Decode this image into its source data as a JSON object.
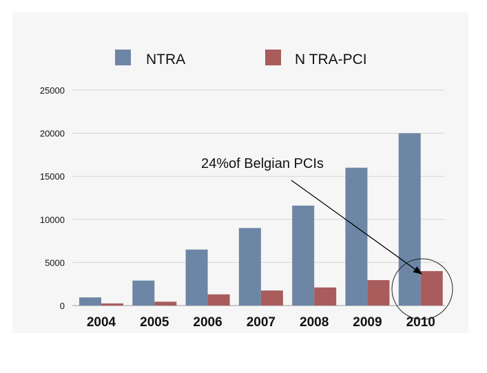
{
  "chart_data": {
    "type": "bar",
    "categories": [
      "2004",
      "2005",
      "2006",
      "2007",
      "2008",
      "2009",
      "2010"
    ],
    "series": [
      {
        "name": "NTRA",
        "color": "#6d86a6",
        "values": [
          950,
          2900,
          6500,
          9000,
          11600,
          16000,
          20000
        ]
      },
      {
        "name": "N TRA-PCI",
        "color": "#a85c5c",
        "values": [
          250,
          450,
          1300,
          1750,
          2100,
          2950,
          4000
        ]
      }
    ],
    "yticks": [
      "0",
      "5000",
      "10000",
      "15000",
      "20000",
      "25000"
    ],
    "ylim": [
      0,
      25000
    ],
    "grid": true,
    "legend": "top",
    "annotation": {
      "text": "24%of Belgian PCIs",
      "target_category": "2010",
      "target_series": "N TRA-PCI"
    }
  }
}
